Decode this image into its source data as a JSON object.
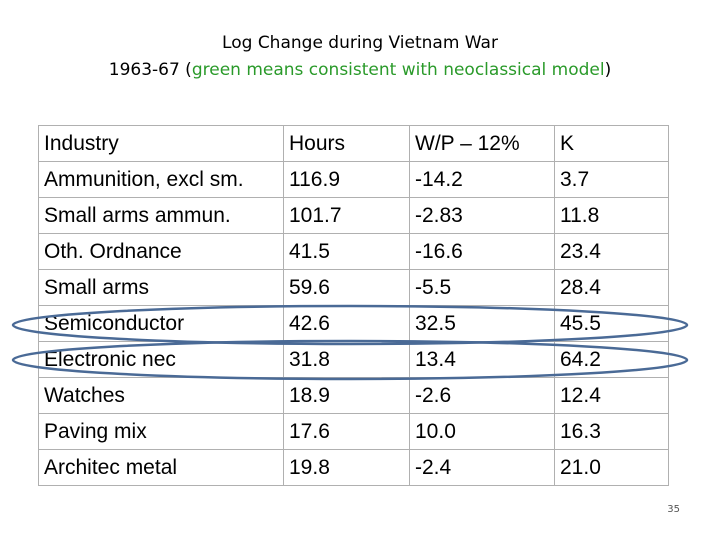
{
  "slide": {
    "title_line1": "Log Change during Vietnam War",
    "title_line2_prefix": "1963-67 (",
    "title_line2_green": "green means consistent with neoclassical model",
    "title_line2_suffix": ")",
    "green_color": "#2a9a2a",
    "page_number": "35"
  },
  "table": {
    "headers": [
      "Industry",
      "Hours",
      "W/P – 12%",
      "K"
    ],
    "rows": [
      [
        "Ammunition, excl sm.",
        "116.9",
        "-14.2",
        "3.7"
      ],
      [
        "Small arms ammun.",
        "101.7",
        "-2.83",
        "11.8"
      ],
      [
        "Oth. Ordnance",
        "41.5",
        "-16.6",
        "23.4"
      ],
      [
        "Small arms",
        "59.6",
        "-5.5",
        "28.4"
      ],
      [
        "Semiconductor",
        "42.6",
        "32.5",
        "45.5"
      ],
      [
        "Electronic nec",
        "31.8",
        "13.4",
        "64.2"
      ],
      [
        "Watches",
        "18.9",
        "-2.6",
        "12.4"
      ],
      [
        "Paving mix",
        "17.6",
        "10.0",
        "16.3"
      ],
      [
        "Architec metal",
        "19.8",
        "-2.4",
        "21.0"
      ]
    ],
    "highlighted_rows": [
      "Semiconductor",
      "Electronic nec"
    ],
    "highlight_color": "#4a6a96"
  }
}
